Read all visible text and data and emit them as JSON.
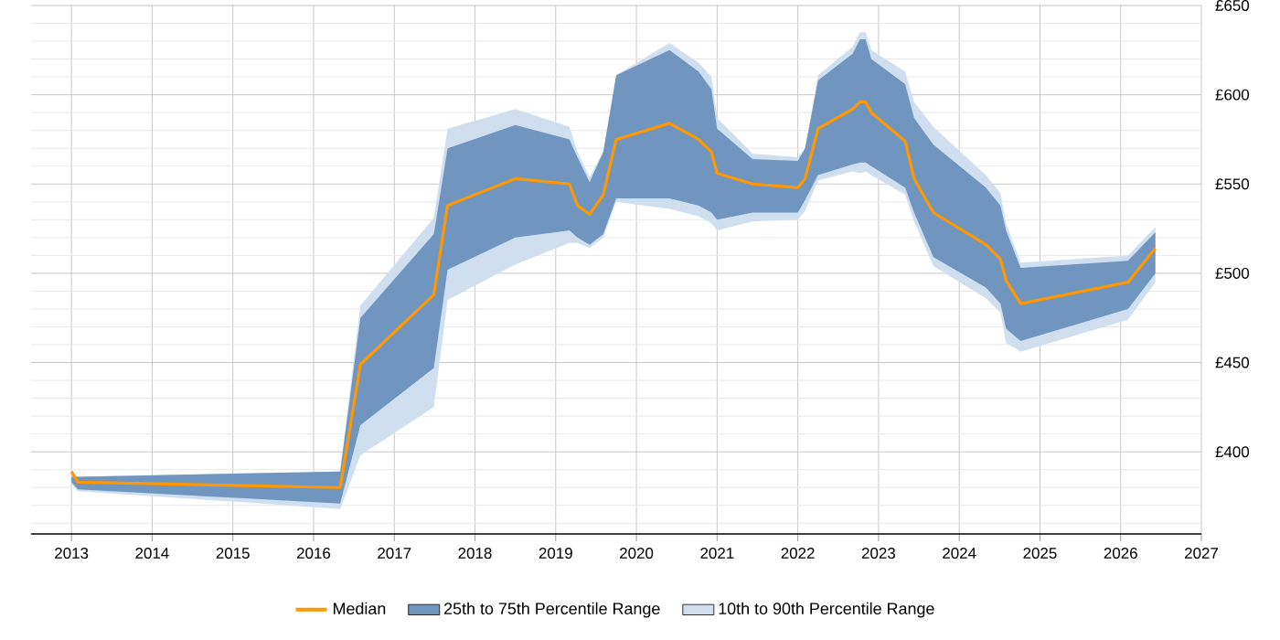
{
  "chart_data": {
    "type": "line",
    "xlim": [
      2012.5,
      2027
    ],
    "ylim": [
      354,
      650
    ],
    "xticks": [
      2013,
      2014,
      2015,
      2016,
      2017,
      2018,
      2019,
      2020,
      2021,
      2022,
      2023,
      2024,
      2025,
      2026,
      2027
    ],
    "yticks": [
      {
        "value": 360,
        "label": null
      },
      {
        "value": 370,
        "label": null
      },
      {
        "value": 380,
        "label": null
      },
      {
        "value": 390,
        "label": null
      },
      {
        "value": 400,
        "label": "£400"
      },
      {
        "value": 410,
        "label": null
      },
      {
        "value": 420,
        "label": null
      },
      {
        "value": 430,
        "label": null
      },
      {
        "value": 440,
        "label": null
      },
      {
        "value": 450,
        "label": "£450"
      },
      {
        "value": 460,
        "label": null
      },
      {
        "value": 470,
        "label": null
      },
      {
        "value": 480,
        "label": null
      },
      {
        "value": 490,
        "label": null
      },
      {
        "value": 500,
        "label": "£500"
      },
      {
        "value": 510,
        "label": null
      },
      {
        "value": 520,
        "label": null
      },
      {
        "value": 530,
        "label": null
      },
      {
        "value": 540,
        "label": null
      },
      {
        "value": 550,
        "label": "£550"
      },
      {
        "value": 560,
        "label": null
      },
      {
        "value": 570,
        "label": null
      },
      {
        "value": 580,
        "label": null
      },
      {
        "value": 590,
        "label": null
      },
      {
        "value": 600,
        "label": "£600"
      },
      {
        "value": 610,
        "label": null
      },
      {
        "value": 620,
        "label": null
      },
      {
        "value": 630,
        "label": null
      },
      {
        "value": 640,
        "label": null
      },
      {
        "value": 650,
        "label": "£650"
      }
    ],
    "grid": true,
    "legend": "bottom",
    "marker": "none",
    "line_style": "solid",
    "x": [
      2013.0,
      2013.08,
      2016.33,
      2016.58,
      2017.49,
      2017.66,
      2018.5,
      2019.17,
      2019.27,
      2019.42,
      2019.59,
      2019.75,
      2020.41,
      2020.77,
      2020.93,
      2021.0,
      2021.44,
      2022.0,
      2022.09,
      2022.25,
      2022.68,
      2022.77,
      2022.84,
      2022.91,
      2023.33,
      2023.44,
      2023.68,
      2024.33,
      2024.51,
      2024.58,
      2024.76,
      2026.09,
      2026.43
    ],
    "series": [
      {
        "name": "Median",
        "color": "#ff9800",
        "values": [
          389,
          383,
          380,
          449,
          488,
          538,
          553,
          550,
          538,
          533,
          544,
          575,
          584,
          575,
          568,
          556,
          550,
          548,
          553,
          581,
          592,
          596,
          596,
          590,
          574,
          553,
          534,
          516,
          508,
          496,
          483,
          495,
          514
        ]
      },
      {
        "name": "25th to 75th Percentile Range",
        "type": "area",
        "color": "#7096bf",
        "values": [
          null,
          null,
          null,
          null,
          null,
          null,
          null,
          null,
          null,
          null,
          null,
          null,
          null,
          null,
          null,
          null,
          null,
          null,
          null,
          null,
          null,
          null,
          null,
          null,
          null,
          null,
          null,
          null,
          null,
          null,
          null,
          null,
          null
        ],
        "upper": [
          386,
          386,
          389,
          475,
          522,
          570,
          583,
          575,
          565,
          551,
          568,
          611,
          625,
          613,
          603,
          581,
          564,
          563,
          570,
          608,
          623,
          631,
          631,
          620,
          606,
          587,
          572,
          548,
          538,
          524,
          503,
          507,
          523
        ],
        "lower": [
          383,
          379,
          371,
          415,
          447,
          502,
          520,
          524,
          520,
          516,
          522,
          542,
          542,
          538,
          534,
          530,
          534,
          534,
          541,
          555,
          561,
          562,
          562,
          560,
          548,
          534,
          509,
          492,
          483,
          469,
          462,
          480,
          500
        ]
      },
      {
        "name": "10th to 90th Percentile Range",
        "type": "area",
        "color": "#cfdff0",
        "values": [
          null,
          null,
          null,
          null,
          null,
          null,
          null,
          null,
          null,
          null,
          null,
          null,
          null,
          null,
          null,
          null,
          null,
          null,
          null,
          null,
          null,
          null,
          null,
          null,
          null,
          null,
          null,
          null,
          null,
          null,
          null,
          null,
          null
        ],
        "upper": [
          387,
          386,
          389,
          482,
          531,
          581,
          592,
          582,
          568,
          554,
          568,
          611,
          629,
          618,
          610,
          587,
          567,
          565,
          570,
          611,
          627,
          635,
          635,
          625,
          613,
          596,
          582,
          555,
          545,
          528,
          506,
          510,
          526
        ],
        "lower": [
          382,
          378,
          368,
          398,
          425,
          485,
          505,
          517,
          517,
          514,
          520,
          540,
          536,
          532,
          528,
          524,
          529,
          530,
          535,
          552,
          557,
          556,
          557,
          555,
          544,
          529,
          504,
          486,
          478,
          461,
          456,
          474,
          495
        ]
      }
    ]
  }
}
